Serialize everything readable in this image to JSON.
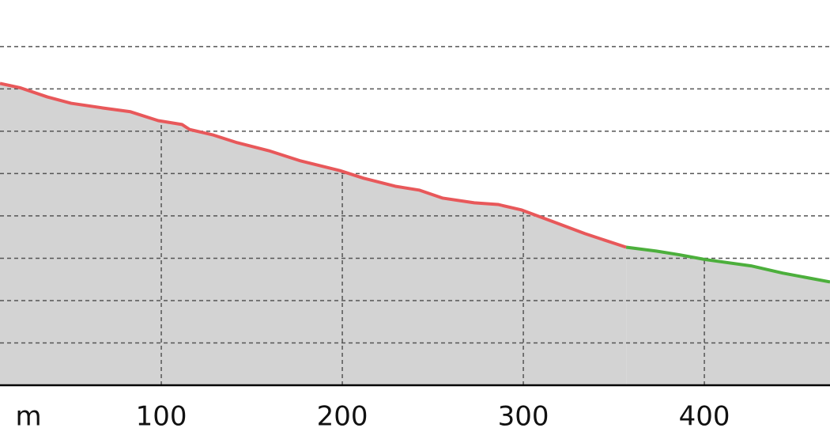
{
  "chart_data": {
    "type": "area",
    "x_label": "m",
    "xlim": [
      10.9,
      469.4
    ],
    "xticks": [
      100,
      200,
      300,
      400
    ],
    "ylim": [
      0,
      9.1
    ],
    "yticks": [
      1,
      2,
      3,
      4,
      5,
      6,
      7,
      8
    ],
    "grid": true,
    "area_color": "#d3d3d3",
    "series": [
      {
        "color": "#e8585a",
        "x": [
          10.9,
          21.8,
          37.1,
          50.2,
          67.7,
          83.0,
          98.3,
          111.4,
          115.7,
          128.8,
          141.9,
          159.4,
          176.9,
          198.7,
          211.8,
          229.3,
          242.4,
          255.5,
          272.9,
          286.0,
          299.1,
          316.6,
          334.1,
          356.8
        ],
        "values": [
          7.13,
          7.03,
          6.81,
          6.66,
          6.55,
          6.46,
          6.25,
          6.16,
          6.04,
          5.91,
          5.73,
          5.54,
          5.3,
          5.07,
          4.89,
          4.7,
          4.61,
          4.42,
          4.31,
          4.27,
          4.14,
          3.86,
          3.58,
          3.26
        ]
      },
      {
        "color": "#4caf3c",
        "x": [
          356.8,
          373.4,
          386.5,
          400.4,
          425.8,
          443.2,
          469.4
        ],
        "values": [
          3.26,
          3.17,
          3.08,
          2.97,
          2.82,
          2.65,
          2.44
        ]
      }
    ]
  }
}
